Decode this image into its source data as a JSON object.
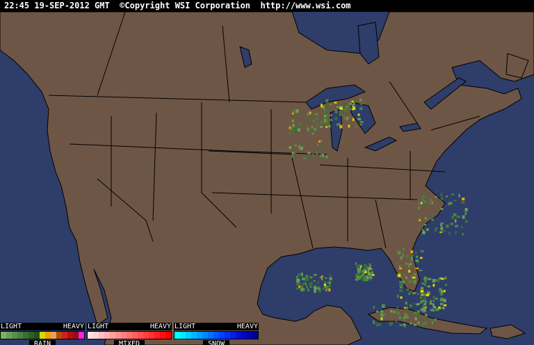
{
  "header": {
    "timestamp": "22:45 19-SEP-2012 GMT",
    "copyright": "©Copyright WSI Corporation",
    "url": "http://www.wsi.com"
  },
  "colors": {
    "ocean": "#2e3d69",
    "land": "#6e5646",
    "borders": "#000000"
  },
  "legend": [
    {
      "name": "RAIN",
      "low": "LIGHT",
      "high": "HEAVY",
      "colors": [
        "#7fb06a",
        "#6aa05a",
        "#5a904c",
        "#4a8040",
        "#3a7034",
        "#2c6028",
        "#20501c",
        "#d8d800",
        "#f0a000",
        "#e0a070",
        "#b05000",
        "#d02020",
        "#b01010",
        "#901020",
        "#ff20e0"
      ]
    },
    {
      "name": "MIXED",
      "low": "LIGHT",
      "high": "HEAVY",
      "colors": [
        "#ffe0e0",
        "#ffd0d0",
        "#ffc0c0",
        "#ffb0b0",
        "#ffa0a0",
        "#ff9090",
        "#ff8080",
        "#ff7070",
        "#ff6060",
        "#ff5050",
        "#ff4040",
        "#ff3030",
        "#ff2020",
        "#ff1010",
        "#ff0000"
      ]
    },
    {
      "name": "SNOW",
      "low": "LIGHT",
      "high": "HEAVY",
      "colors": [
        "#00ffff",
        "#00e8ff",
        "#00d0ff",
        "#00b8ff",
        "#00a0ff",
        "#0088ff",
        "#0070ff",
        "#0058ff",
        "#0040ff",
        "#0030f0",
        "#0020e0",
        "#0010d0",
        "#0008c0",
        "#0000b0",
        "#000090"
      ]
    }
  ]
}
